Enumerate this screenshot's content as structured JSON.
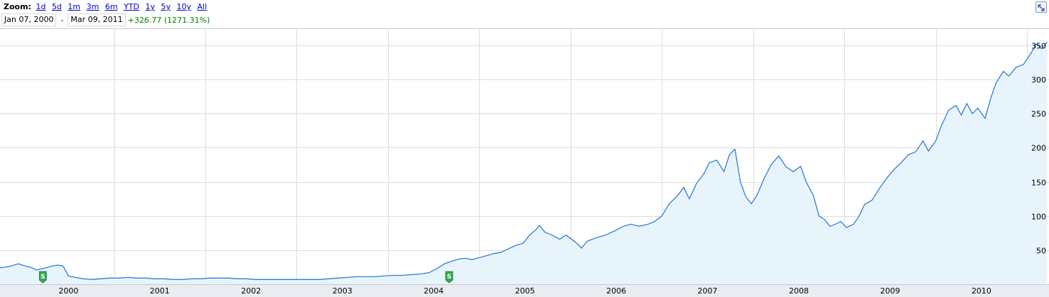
{
  "toolbar": {
    "zoom_label": "Zoom:",
    "zoom_options": [
      "1d",
      "5d",
      "1m",
      "3m",
      "6m",
      "YTD",
      "1y",
      "5y",
      "10y",
      "All"
    ],
    "start_date": "Jan 07, 2000",
    "separator": "-",
    "end_date": "Mar 09, 2011",
    "change": "+326.77 (1271.31%)"
  },
  "colors": {
    "line": "#2f7ed8",
    "fill": "#e8f4fc",
    "grid": "#dadde3",
    "axis_band": "#e9ecf1",
    "marker": "#33a852",
    "change_positive": "#008000",
    "link": "#0000cc"
  },
  "icons": [
    "expand-icon",
    "dividend-marker-icon"
  ],
  "chart_data": {
    "type": "area",
    "title": "",
    "xlabel": "",
    "ylabel": "",
    "x_tick_labels": [
      "2000",
      "2001",
      "2002",
      "2003",
      "2004",
      "2005",
      "2006",
      "2007",
      "2008",
      "2009",
      "2010"
    ],
    "y_tick_labels": [
      "50",
      "100",
      "150",
      "200",
      "250",
      "300",
      "350"
    ],
    "y_ticks": [
      50,
      100,
      150,
      200,
      250,
      300,
      350
    ],
    "ylim": [
      0,
      375
    ],
    "xlim": [
      1999.75,
      2011.24
    ],
    "grid": true,
    "y_axis_side": "right",
    "markers": [
      {
        "x": 2000.22,
        "label": "S"
      },
      {
        "x": 2004.67,
        "label": "S"
      }
    ],
    "series": [
      {
        "points": [
          [
            1999.75,
            24
          ],
          [
            1999.85,
            26
          ],
          [
            1999.95,
            30
          ],
          [
            2000.02,
            27
          ],
          [
            2000.08,
            25
          ],
          [
            2000.15,
            21
          ],
          [
            2000.22,
            23
          ],
          [
            2000.3,
            26
          ],
          [
            2000.38,
            28
          ],
          [
            2000.44,
            27
          ],
          [
            2000.5,
            12
          ],
          [
            2000.58,
            10
          ],
          [
            2000.66,
            8
          ],
          [
            2000.75,
            7
          ],
          [
            2000.85,
            8
          ],
          [
            2000.95,
            9
          ],
          [
            2001.05,
            9
          ],
          [
            2001.15,
            10
          ],
          [
            2001.25,
            9
          ],
          [
            2001.35,
            9
          ],
          [
            2001.45,
            8
          ],
          [
            2001.55,
            8
          ],
          [
            2001.65,
            7
          ],
          [
            2001.75,
            7
          ],
          [
            2001.85,
            8
          ],
          [
            2001.95,
            8
          ],
          [
            2002.05,
            9
          ],
          [
            2002.15,
            9
          ],
          [
            2002.25,
            9
          ],
          [
            2002.35,
            8
          ],
          [
            2002.45,
            8
          ],
          [
            2002.55,
            7
          ],
          [
            2002.65,
            7
          ],
          [
            2002.75,
            7
          ],
          [
            2002.85,
            7
          ],
          [
            2002.95,
            7
          ],
          [
            2003.05,
            7
          ],
          [
            2003.15,
            7
          ],
          [
            2003.25,
            7
          ],
          [
            2003.35,
            8
          ],
          [
            2003.45,
            9
          ],
          [
            2003.55,
            10
          ],
          [
            2003.65,
            11
          ],
          [
            2003.75,
            11
          ],
          [
            2003.85,
            11
          ],
          [
            2003.95,
            12
          ],
          [
            2004.05,
            13
          ],
          [
            2004.15,
            13
          ],
          [
            2004.25,
            14
          ],
          [
            2004.35,
            15
          ],
          [
            2004.45,
            17
          ],
          [
            2004.55,
            24
          ],
          [
            2004.62,
            30
          ],
          [
            2004.7,
            34
          ],
          [
            2004.78,
            37
          ],
          [
            2004.85,
            38
          ],
          [
            2004.92,
            36
          ],
          [
            2005.0,
            39
          ],
          [
            2005.08,
            42
          ],
          [
            2005.16,
            45
          ],
          [
            2005.24,
            47
          ],
          [
            2005.32,
            52
          ],
          [
            2005.4,
            57
          ],
          [
            2005.48,
            60
          ],
          [
            2005.55,
            72
          ],
          [
            2005.62,
            80
          ],
          [
            2005.66,
            86
          ],
          [
            2005.72,
            76
          ],
          [
            2005.8,
            72
          ],
          [
            2005.88,
            66
          ],
          [
            2005.95,
            72
          ],
          [
            2006.05,
            62
          ],
          [
            2006.12,
            53
          ],
          [
            2006.18,
            63
          ],
          [
            2006.28,
            68
          ],
          [
            2006.38,
            72
          ],
          [
            2006.48,
            78
          ],
          [
            2006.58,
            85
          ],
          [
            2006.66,
            88
          ],
          [
            2006.75,
            85
          ],
          [
            2006.85,
            88
          ],
          [
            2006.92,
            92
          ],
          [
            2007.0,
            100
          ],
          [
            2007.08,
            118
          ],
          [
            2007.16,
            128
          ],
          [
            2007.24,
            142
          ],
          [
            2007.3,
            125
          ],
          [
            2007.38,
            148
          ],
          [
            2007.46,
            162
          ],
          [
            2007.52,
            178
          ],
          [
            2007.6,
            182
          ],
          [
            2007.68,
            165
          ],
          [
            2007.74,
            190
          ],
          [
            2007.8,
            198
          ],
          [
            2007.86,
            150
          ],
          [
            2007.92,
            128
          ],
          [
            2007.98,
            118
          ],
          [
            2008.04,
            130
          ],
          [
            2008.12,
            155
          ],
          [
            2008.2,
            176
          ],
          [
            2008.28,
            188
          ],
          [
            2008.36,
            172
          ],
          [
            2008.44,
            165
          ],
          [
            2008.52,
            173
          ],
          [
            2008.58,
            150
          ],
          [
            2008.66,
            130
          ],
          [
            2008.72,
            100
          ],
          [
            2008.78,
            95
          ],
          [
            2008.84,
            85
          ],
          [
            2008.9,
            88
          ],
          [
            2008.96,
            92
          ],
          [
            2009.02,
            83
          ],
          [
            2009.1,
            88
          ],
          [
            2009.16,
            100
          ],
          [
            2009.22,
            117
          ],
          [
            2009.3,
            123
          ],
          [
            2009.38,
            140
          ],
          [
            2009.46,
            155
          ],
          [
            2009.54,
            168
          ],
          [
            2009.62,
            178
          ],
          [
            2009.7,
            190
          ],
          [
            2009.78,
            194
          ],
          [
            2009.86,
            210
          ],
          [
            2009.92,
            195
          ],
          [
            2010.0,
            210
          ],
          [
            2010.06,
            232
          ],
          [
            2010.14,
            255
          ],
          [
            2010.22,
            262
          ],
          [
            2010.28,
            248
          ],
          [
            2010.34,
            265
          ],
          [
            2010.4,
            250
          ],
          [
            2010.46,
            258
          ],
          [
            2010.54,
            243
          ],
          [
            2010.6,
            272
          ],
          [
            2010.66,
            295
          ],
          [
            2010.74,
            312
          ],
          [
            2010.8,
            305
          ],
          [
            2010.88,
            318
          ],
          [
            2010.96,
            322
          ],
          [
            2011.04,
            338
          ],
          [
            2011.1,
            352
          ],
          [
            2011.16,
            345
          ],
          [
            2011.22,
            355
          ]
        ]
      }
    ]
  }
}
